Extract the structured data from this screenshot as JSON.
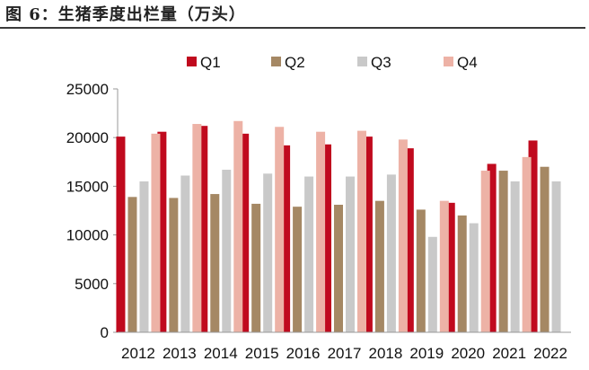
{
  "figure": {
    "title": "图 6：生猪季度出栏量（万头）"
  },
  "colors": {
    "Q1": "#C00A1E",
    "Q2": "#A58864",
    "Q3": "#C9C9C9",
    "Q4": "#EDB2A6",
    "axis": "#999999"
  },
  "chart_data": {
    "type": "bar",
    "title": "生猪季度出栏量（万头）",
    "xlabel": "",
    "ylabel": "",
    "ylim": [
      0,
      25000
    ],
    "yticks": [
      "0",
      "5000",
      "10000",
      "15000",
      "20000",
      "25000"
    ],
    "grid": false,
    "legend": "top-center",
    "categories": [
      "2012",
      "2013",
      "2014",
      "2015",
      "2016",
      "2017",
      "2018",
      "2019",
      "2020",
      "2021",
      "2022"
    ],
    "series": [
      {
        "name": "Q1",
        "values": [
          20100,
          20600,
          21200,
          20400,
          19200,
          19300,
          20100,
          18900,
          13300,
          17300,
          19700
        ]
      },
      {
        "name": "Q2",
        "values": [
          13900,
          13800,
          14200,
          13200,
          12900,
          13100,
          13500,
          12600,
          12000,
          16600,
          17000
        ]
      },
      {
        "name": "Q3",
        "values": [
          15500,
          16100,
          16700,
          16300,
          16000,
          16000,
          16200,
          9800,
          11200,
          15500,
          15500
        ]
      },
      {
        "name": "Q4",
        "values": [
          20400,
          21400,
          21700,
          21100,
          20600,
          20700,
          19800,
          13500,
          16600,
          18000,
          null
        ]
      }
    ]
  }
}
